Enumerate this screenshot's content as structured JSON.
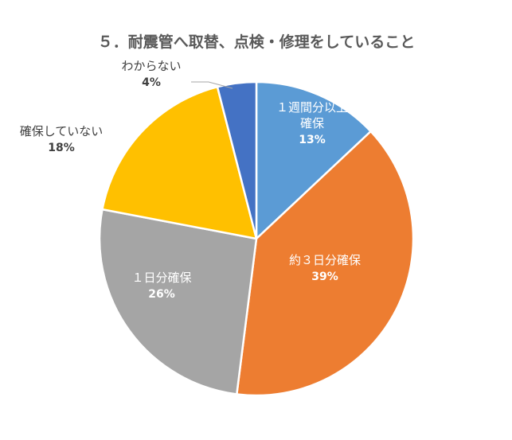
{
  "chart_data": {
    "type": "pie",
    "title": "５．耐震管へ取替、点検・修理をしていること",
    "slices": [
      {
        "label": "１週間分以上確保",
        "label_lines": [
          "１週間分以上",
          "確保"
        ],
        "value": 13,
        "value_label": "13%",
        "color": "#5B9BD5",
        "label_color": "#FFFFFF"
      },
      {
        "label": "約３日分確保",
        "label_lines": [
          "約３日分確保"
        ],
        "value": 39,
        "value_label": "39%",
        "color": "#ED7D31",
        "label_color": "#FFFFFF"
      },
      {
        "label": "１日分確保",
        "label_lines": [
          "１日分確保"
        ],
        "value": 26,
        "value_label": "26%",
        "color": "#A5A5A5",
        "label_color": "#FFFFFF"
      },
      {
        "label": "確保していない",
        "label_lines": [
          "確保していない"
        ],
        "value": 18,
        "value_label": "18%",
        "color": "#FFC000",
        "label_color": "#404040"
      },
      {
        "label": "わからない",
        "label_lines": [
          "わからない"
        ],
        "value": 4,
        "value_label": "4%",
        "color": "#4472C4",
        "label_color": "#404040"
      }
    ],
    "start_angle_deg": 0,
    "direction": "clockwise",
    "legend": "none",
    "data_labels": "category-and-percent"
  }
}
